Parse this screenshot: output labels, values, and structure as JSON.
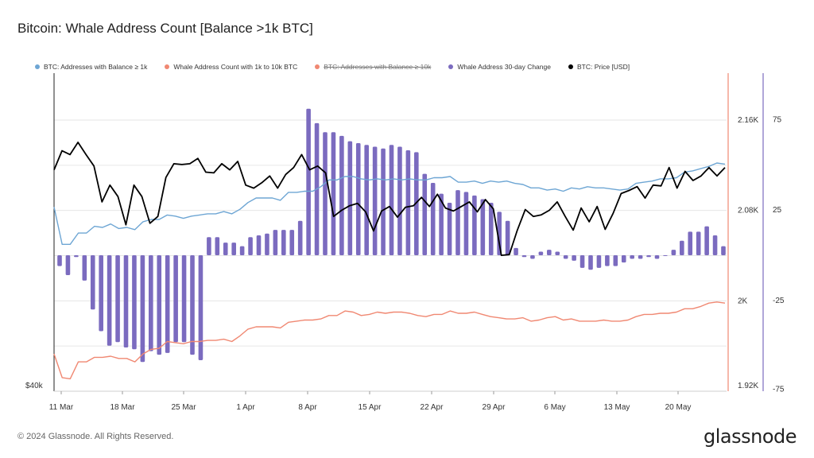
{
  "title": "Bitcoin: Whale Address Count [Balance >1k BTC]",
  "legend": [
    {
      "label": "BTC: Addresses with Balance ≥ 1k",
      "color": "#6ea6d4",
      "struck": false
    },
    {
      "label": "Whale Address Count with 1k to 10k BTC",
      "color": "#f08872",
      "struck": false
    },
    {
      "label": "BTC: Addresses with Balance ≥ 10k",
      "color": "#f08872",
      "struck": true
    },
    {
      "label": "Whale Address 30-day Change",
      "color": "#7b6bbf",
      "struck": false
    },
    {
      "label": "BTC: Price [USD]",
      "color": "#000000",
      "struck": false
    }
  ],
  "footer": "© 2024 Glassnode. All Rights Reserved.",
  "brand": "glassnode",
  "chart_data": {
    "type": "line",
    "x_tick_labels": [
      "11 Mar",
      "18 Mar",
      "25 Mar",
      "1 Apr",
      "8 Apr",
      "15 Apr",
      "22 Apr",
      "29 Apr",
      "6 May",
      "13 May",
      "20 May"
    ],
    "y_left_tick_labels": [
      "$40k"
    ],
    "y_right_tick_labels": [
      "2.16K",
      "2.08K",
      "2K",
      "1.92K"
    ],
    "y_right2_tick_labels": [
      "75",
      "25",
      "-25",
      "-75"
    ],
    "y_right_range": [
      1920,
      2180
    ],
    "y_right2_range": [
      -75,
      100
    ],
    "price_range_usd": [
      40000,
      80000
    ],
    "grid": true,
    "legend_position": "top",
    "series": [
      {
        "name": "BTC: Addresses with Balance ≥ 1k",
        "axis": "right",
        "color": "#6ea6d4",
        "values": [
          2083,
          2050,
          2050,
          2060,
          2060,
          2066,
          2065,
          2068,
          2064,
          2065,
          2063,
          2070,
          2072,
          2072,
          2076,
          2075,
          2073,
          2075,
          2076,
          2077,
          2077,
          2079,
          2077,
          2081,
          2087,
          2091,
          2091,
          2091,
          2089,
          2096,
          2096,
          2097,
          2097,
          2101,
          2107,
          2107,
          2110,
          2110,
          2108,
          2107,
          2108,
          2107,
          2108,
          2107,
          2108,
          2107,
          2107,
          2109,
          2109,
          2110,
          2105,
          2105,
          2106,
          2104,
          2106,
          2105,
          2106,
          2104,
          2103,
          2100,
          2100,
          2098,
          2099,
          2097,
          2100,
          2099,
          2101,
          2100,
          2100,
          2099,
          2098,
          2099,
          2104,
          2105,
          2106,
          2108,
          2108,
          2109,
          2114,
          2115,
          2117,
          2119,
          2122,
          2121
        ]
      },
      {
        "name": "Whale Address Count with 1k to 10k BTC",
        "axis": "right",
        "color": "#f08872",
        "values": [
          1953,
          1932,
          1931,
          1946,
          1946,
          1950,
          1950,
          1951,
          1949,
          1949,
          1946,
          1953,
          1957,
          1958,
          1964,
          1963,
          1962,
          1964,
          1964,
          1965,
          1965,
          1966,
          1964,
          1969,
          1975,
          1977,
          1977,
          1977,
          1976,
          1981,
          1982,
          1983,
          1983,
          1984,
          1987,
          1987,
          1991,
          1990,
          1987,
          1988,
          1990,
          1989,
          1990,
          1990,
          1989,
          1987,
          1986,
          1988,
          1988,
          1991,
          1989,
          1989,
          1990,
          1988,
          1986,
          1985,
          1984,
          1984,
          1985,
          1982,
          1983,
          1985,
          1986,
          1983,
          1984,
          1982,
          1982,
          1982,
          1983,
          1982,
          1982,
          1983,
          1986,
          1988,
          1988,
          1989,
          1989,
          1990,
          1993,
          1993,
          1995,
          1998,
          1999,
          1998
        ]
      },
      {
        "name": "Whale Address 30-day Change",
        "axis": "right2",
        "type": "bar",
        "color": "#7b6bbf",
        "values": [
          -6,
          -11,
          -1,
          -14,
          -30,
          -42,
          -50,
          -48,
          -51,
          -52,
          -59,
          -53,
          -55,
          -54,
          -48,
          -48,
          -55,
          -58,
          10,
          10,
          7,
          7,
          5,
          10,
          11,
          12,
          14,
          14,
          14,
          19,
          81,
          73,
          68,
          68,
          66,
          63,
          62,
          61,
          60,
          59,
          61,
          60,
          58,
          57,
          45,
          40,
          34,
          29,
          36,
          35,
          33,
          31,
          29,
          24,
          19,
          4,
          -1,
          -2,
          2,
          3,
          2,
          -2,
          -3,
          -7,
          -8,
          -7,
          -6,
          -6,
          -4,
          -2,
          -2,
          -1,
          -2,
          0,
          3,
          8,
          13,
          13,
          16,
          11,
          5
        ]
      },
      {
        "name": "BTC: Price [USD]",
        "axis": "left",
        "color": "#000000",
        "values": [
          69000,
          71500,
          71000,
          72600,
          71000,
          69500,
          64800,
          67000,
          65500,
          61800,
          67000,
          65500,
          62000,
          62900,
          68000,
          69800,
          69700,
          69800,
          70500,
          68700,
          68600,
          69800,
          69000,
          70100,
          67000,
          66600,
          67300,
          68200,
          66600,
          68400,
          69300,
          71000,
          69000,
          69500,
          68600,
          62900,
          63700,
          64300,
          64600,
          63500,
          61000,
          63600,
          64200,
          62800,
          64100,
          64300,
          65400,
          64200,
          65800,
          64000,
          63600,
          64200,
          64800,
          63500,
          65100,
          63900,
          57800,
          57900,
          61100,
          63800,
          62900,
          63100,
          63700,
          64800,
          62900,
          61100,
          64000,
          62200,
          64200,
          61200,
          63300,
          65900,
          66300,
          66800,
          65300,
          67000,
          66900,
          69300,
          66600,
          68800,
          67600,
          68200,
          69300,
          68200,
          69300
        ]
      }
    ]
  }
}
